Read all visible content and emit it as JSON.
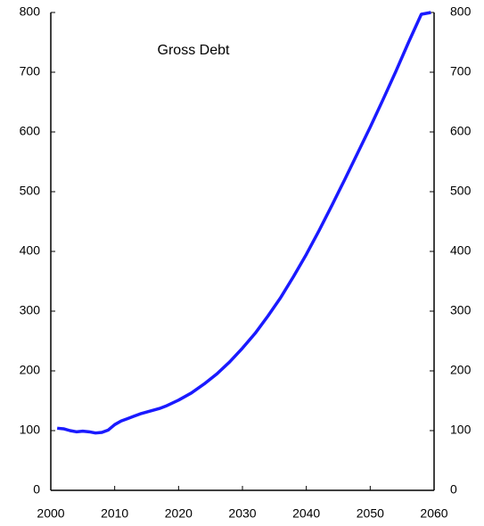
{
  "chart_data": {
    "type": "line",
    "title": "Gross Debt",
    "x": [
      2001,
      2002,
      2003,
      2004,
      2005,
      2006,
      2007,
      2008,
      2009,
      2010,
      2011,
      2012,
      2013,
      2014,
      2015,
      2016,
      2017,
      2018,
      2019,
      2020,
      2022,
      2024,
      2026,
      2028,
      2030,
      2032,
      2034,
      2036,
      2038,
      2040,
      2042,
      2044,
      2046,
      2048,
      2050,
      2052,
      2054,
      2056,
      2058,
      2059.5
    ],
    "series": [
      {
        "name": "Gross Debt",
        "color": "#1a1aff",
        "values": [
          104,
          103,
          100,
          98,
          99,
          98,
          96,
          97,
          101,
          110,
          116,
          120,
          124,
          128,
          131,
          134,
          137,
          141,
          146,
          151,
          163,
          178,
          195,
          215,
          238,
          263,
          292,
          323,
          358,
          395,
          435,
          477,
          520,
          564,
          608,
          654,
          701,
          750,
          797,
          800
        ]
      }
    ],
    "xlim": [
      2000,
      2060
    ],
    "xticks": [
      2000,
      2010,
      2020,
      2030,
      2040,
      2050,
      2060
    ],
    "ylim": [
      0,
      800
    ],
    "yticks": [
      0,
      100,
      200,
      300,
      400,
      500,
      600,
      700,
      800
    ],
    "y2lim": [
      0,
      800
    ],
    "y2ticks": [
      0,
      100,
      200,
      300,
      400,
      500,
      600,
      700,
      800
    ]
  }
}
